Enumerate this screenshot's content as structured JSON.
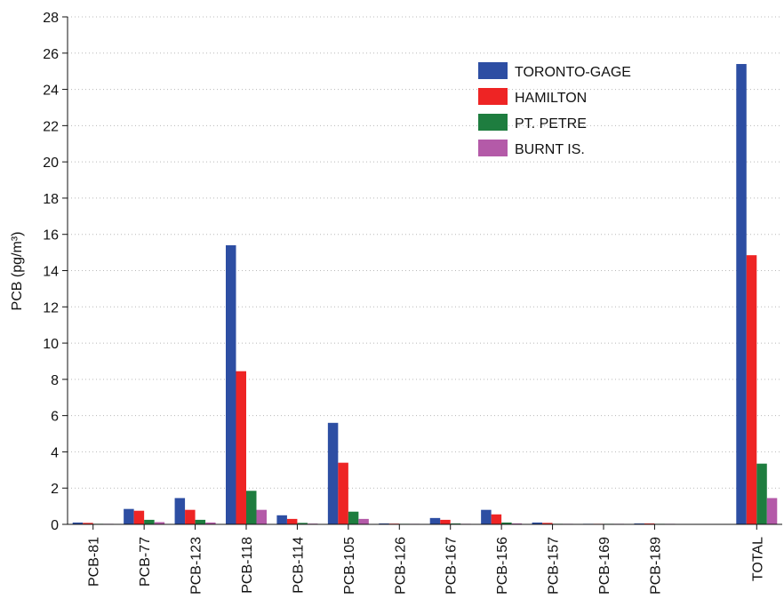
{
  "chart_data": {
    "type": "bar",
    "title": "",
    "xlabel": "",
    "ylabel": "PCB (pg/m³)",
    "ylim": [
      0,
      28
    ],
    "yticks": [
      0,
      2,
      4,
      6,
      8,
      10,
      12,
      14,
      16,
      18,
      20,
      22,
      24,
      26,
      28
    ],
    "grid": "horizontal-dotted",
    "legend_position": "top-right",
    "categories": [
      "PCB-81",
      "PCB-77",
      "PCB-123",
      "PCB-118",
      "PCB-114",
      "PCB-105",
      "PCB-126",
      "PCB-167",
      "PCB-156",
      "PCB-157",
      "PCB-169",
      "PCB-189",
      "",
      "TOTAL"
    ],
    "series": [
      {
        "name": "TORONTO-GAGE",
        "color": "#2d4ea3",
        "values": [
          0.1,
          0.85,
          1.45,
          15.4,
          0.5,
          5.6,
          0.05,
          0.35,
          0.8,
          0.1,
          0.03,
          0.05,
          null,
          25.4
        ]
      },
      {
        "name": "HAMILTON",
        "color": "#ee2424",
        "values": [
          0.08,
          0.75,
          0.8,
          8.45,
          0.3,
          3.4,
          0.04,
          0.25,
          0.55,
          0.08,
          0.02,
          0.05,
          null,
          14.85
        ]
      },
      {
        "name": "PT. PETRE",
        "color": "#1e7d3f",
        "values": [
          0.03,
          0.25,
          0.25,
          1.85,
          0.08,
          0.7,
          0.01,
          0.05,
          0.1,
          0.03,
          0.01,
          0.02,
          null,
          3.35
        ]
      },
      {
        "name": "BURNT IS.",
        "color": "#b45aa8",
        "values": [
          0.02,
          0.12,
          0.1,
          0.8,
          0.04,
          0.3,
          0.01,
          0.03,
          0.05,
          0.01,
          0.0,
          0.01,
          null,
          1.45
        ]
      }
    ]
  }
}
